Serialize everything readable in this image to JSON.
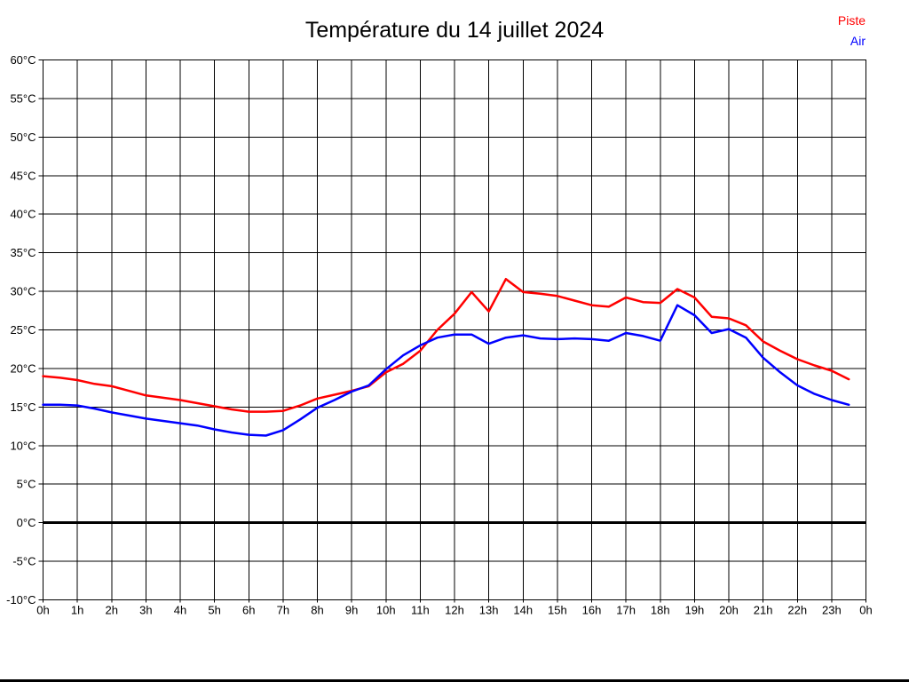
{
  "chart": {
    "title": "Température du 14 juillet 2024",
    "legend": [
      {
        "label": "Piste",
        "color": "#ff0000"
      },
      {
        "label": "Air",
        "color": "#0000ff"
      }
    ]
  },
  "chart_data": {
    "type": "line",
    "title": "Température du 14 juillet 2024",
    "xlabel": "",
    "ylabel": "",
    "x_unit": "hours",
    "x_range": [
      0,
      24
    ],
    "y_range": [
      -10,
      60
    ],
    "y_tick_step": 5,
    "zero_line": 0,
    "grid": true,
    "legend_position": "top-right",
    "x_tick_labels": [
      "0h",
      "1h",
      "2h",
      "3h",
      "4h",
      "5h",
      "6h",
      "7h",
      "8h",
      "9h",
      "10h",
      "11h",
      "12h",
      "13h",
      "14h",
      "15h",
      "16h",
      "17h",
      "18h",
      "19h",
      "20h",
      "21h",
      "22h",
      "23h",
      "0h"
    ],
    "y_tick_labels": [
      "60°C",
      "55°C",
      "50°C",
      "45°C",
      "40°C",
      "35°C",
      "30°C",
      "25°C",
      "20°C",
      "15°C",
      "10°C",
      "5°C",
      "0°C",
      "-5°C",
      "-10°C"
    ],
    "x": [
      0,
      0.5,
      1,
      1.5,
      2,
      2.5,
      3,
      3.5,
      4,
      4.5,
      5,
      5.5,
      6,
      6.5,
      7,
      7.5,
      8,
      8.5,
      9,
      9.5,
      10,
      10.5,
      11,
      11.5,
      12,
      12.5,
      13,
      13.5,
      14,
      14.5,
      15,
      15.5,
      16,
      16.5,
      17,
      17.5,
      18,
      18.5,
      19,
      19.5,
      20,
      20.5,
      21,
      21.5,
      22,
      22.5,
      23,
      23.5
    ],
    "series": [
      {
        "name": "Piste",
        "color": "#ff0000",
        "values": [
          19.0,
          18.8,
          18.5,
          18.0,
          17.7,
          17.1,
          16.5,
          16.2,
          15.9,
          15.5,
          15.1,
          14.7,
          14.4,
          14.4,
          14.5,
          15.2,
          16.1,
          16.6,
          17.1,
          17.7,
          19.5,
          20.6,
          22.3,
          25.0,
          27.1,
          29.9,
          27.4,
          31.6,
          29.9,
          29.7,
          29.4,
          28.8,
          28.2,
          28.0,
          29.2,
          28.6,
          28.5,
          30.3,
          29.2,
          26.7,
          26.5,
          25.6,
          23.5,
          22.3,
          21.2,
          20.4,
          19.7,
          18.6
        ]
      },
      {
        "name": "Air",
        "color": "#0000ff",
        "values": [
          15.3,
          15.3,
          15.2,
          14.8,
          14.3,
          13.9,
          13.5,
          13.2,
          12.9,
          12.6,
          12.1,
          11.7,
          11.4,
          11.3,
          12.0,
          13.4,
          14.9,
          15.9,
          17.0,
          17.8,
          19.9,
          21.7,
          23.0,
          24.0,
          24.4,
          24.4,
          23.2,
          24.0,
          24.3,
          23.9,
          23.8,
          23.9,
          23.8,
          23.6,
          24.6,
          24.2,
          23.6,
          28.2,
          26.9,
          24.6,
          25.1,
          24.0,
          21.4,
          19.5,
          17.8,
          16.7,
          15.9,
          15.3
        ]
      }
    ]
  }
}
